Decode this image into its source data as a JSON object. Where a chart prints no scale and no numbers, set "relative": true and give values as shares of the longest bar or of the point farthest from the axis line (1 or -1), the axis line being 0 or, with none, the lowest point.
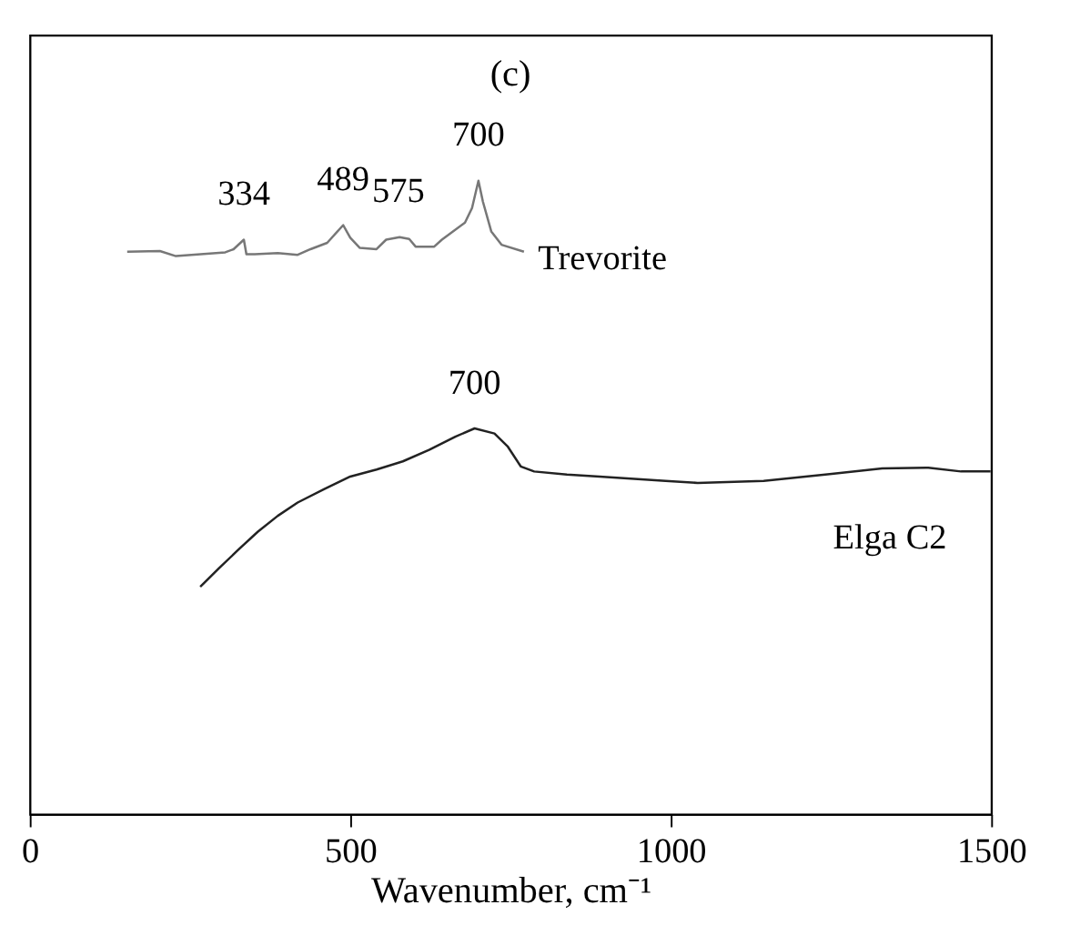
{
  "chart_data": {
    "type": "line",
    "title": "(c)",
    "xlabel": "Wavenumber, cm⁻¹",
    "relative": true,
    "xlim": [
      0,
      1500
    ],
    "xticks": [
      0,
      500,
      1000,
      1500
    ],
    "grid": false,
    "marker": "none",
    "line_style": "solid",
    "series": [
      {
        "name": "Trevorite",
        "color": "#777777",
        "x": [
          152,
          203,
          228,
          305,
          318,
          334,
          338,
          351,
          387,
          418,
          438,
          464,
          489,
          500,
          515,
          541,
          556,
          577,
          592,
          602,
          631,
          643,
          679,
          690,
          700,
          707,
          720,
          736,
          771
        ],
        "values": [
          0.888,
          0.889,
          0.881,
          0.887,
          0.892,
          0.907,
          0.884,
          0.884,
          0.886,
          0.883,
          0.892,
          0.902,
          0.93,
          0.91,
          0.894,
          0.892,
          0.907,
          0.911,
          0.908,
          0.896,
          0.896,
          0.907,
          0.934,
          0.957,
          1.0,
          0.967,
          0.92,
          0.899,
          0.888
        ]
      },
      {
        "name": "Elga C2",
        "color": "#222222",
        "x": [
          266,
          295,
          325,
          356,
          387,
          418,
          459,
          500,
          541,
          582,
          623,
          664,
          694,
          725,
          746,
          766,
          787,
          838,
          889,
          992,
          1042,
          1145,
          1248,
          1330,
          1402,
          1453,
          1499
        ],
        "values": [
          0.359,
          0.388,
          0.417,
          0.446,
          0.471,
          0.492,
          0.513,
          0.533,
          0.544,
          0.557,
          0.575,
          0.596,
          0.609,
          0.601,
          0.58,
          0.549,
          0.541,
          0.536,
          0.533,
          0.526,
          0.523,
          0.526,
          0.537,
          0.546,
          0.547,
          0.541,
          0.541
        ]
      }
    ],
    "annotations": [
      {
        "text": "334",
        "x": 334,
        "y": 0.907
      },
      {
        "text": "489",
        "x": 489,
        "y": 0.93
      },
      {
        "text": "575",
        "x": 575,
        "y": 0.911
      },
      {
        "text": "700",
        "x": 700,
        "y": 1.0
      },
      {
        "text": "700",
        "x": 694,
        "y": 0.609
      }
    ]
  }
}
